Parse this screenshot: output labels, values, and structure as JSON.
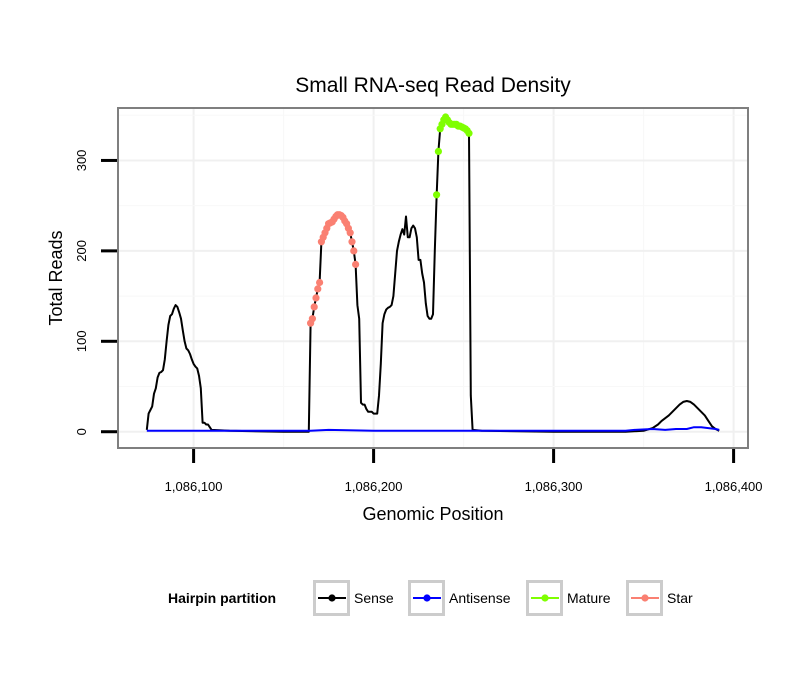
{
  "chart_data": {
    "type": "line",
    "title": "Small RNA-seq Read Density",
    "xlabel": "Genomic Position",
    "ylabel": "Total Reads",
    "xlim": [
      1086058,
      1086408
    ],
    "ylim": [
      -18,
      358
    ],
    "x_ticks": [
      {
        "value": 1086100,
        "label": "1,086,100"
      },
      {
        "value": 1086200,
        "label": "1,086,200"
      },
      {
        "value": 1086300,
        "label": "1,086,300"
      },
      {
        "value": 1086400,
        "label": "1,086,400"
      }
    ],
    "y_ticks": [
      {
        "value": 0,
        "label": "0"
      },
      {
        "value": 100,
        "label": "100"
      },
      {
        "value": 200,
        "label": "200"
      },
      {
        "value": 300,
        "label": "300"
      }
    ],
    "grid": true,
    "legend": {
      "title": "Hairpin partition",
      "position": "bottom",
      "entries": [
        {
          "label": "Sense",
          "color": "#000000"
        },
        {
          "label": "Antisense",
          "color": "#0000ff"
        },
        {
          "label": "Mature",
          "color": "#7fff00"
        },
        {
          "label": "Star",
          "color": "#fa8072"
        }
      ]
    },
    "series": [
      {
        "name": "Sense",
        "color": "#000000",
        "style": "line",
        "points": [
          [
            1086074,
            2
          ],
          [
            1086075,
            20
          ],
          [
            1086076,
            24
          ],
          [
            1086077,
            28
          ],
          [
            1086078,
            42
          ],
          [
            1086079,
            48
          ],
          [
            1086080,
            60
          ],
          [
            1086081,
            65
          ],
          [
            1086082,
            66
          ],
          [
            1086083,
            68
          ],
          [
            1086084,
            80
          ],
          [
            1086085,
            100
          ],
          [
            1086086,
            118
          ],
          [
            1086087,
            128
          ],
          [
            1086088,
            130
          ],
          [
            1086089,
            136
          ],
          [
            1086090,
            140
          ],
          [
            1086091,
            138
          ],
          [
            1086092,
            132
          ],
          [
            1086093,
            125
          ],
          [
            1086094,
            112
          ],
          [
            1086095,
            100
          ],
          [
            1086096,
            92
          ],
          [
            1086097,
            90
          ],
          [
            1086098,
            86
          ],
          [
            1086099,
            80
          ],
          [
            1086100,
            75
          ],
          [
            1086101,
            72
          ],
          [
            1086102,
            70
          ],
          [
            1086103,
            62
          ],
          [
            1086104,
            48
          ],
          [
            1086105,
            10
          ],
          [
            1086106,
            10
          ],
          [
            1086107,
            8
          ],
          [
            1086108,
            8
          ],
          [
            1086109,
            5
          ],
          [
            1086110,
            2
          ],
          [
            1086120,
            1
          ],
          [
            1086150,
            0
          ],
          [
            1086164,
            0
          ],
          [
            1086165,
            120
          ],
          [
            1086166,
            125
          ],
          [
            1086167,
            138
          ],
          [
            1086168,
            148
          ],
          [
            1086169,
            158
          ],
          [
            1086170,
            165
          ],
          [
            1086171,
            210
          ],
          [
            1086172,
            215
          ],
          [
            1086173,
            220
          ],
          [
            1086174,
            225
          ],
          [
            1086175,
            230
          ],
          [
            1086176,
            231
          ],
          [
            1086177,
            232
          ],
          [
            1086178,
            235
          ],
          [
            1086179,
            238
          ],
          [
            1086180,
            240
          ],
          [
            1086181,
            240
          ],
          [
            1086182,
            239
          ],
          [
            1086183,
            237
          ],
          [
            1086184,
            233
          ],
          [
            1086185,
            230
          ],
          [
            1086186,
            225
          ],
          [
            1086187,
            220
          ],
          [
            1086188,
            210
          ],
          [
            1086189,
            200
          ],
          [
            1086190,
            185
          ],
          [
            1086191,
            140
          ],
          [
            1086192,
            125
          ],
          [
            1086193,
            32
          ],
          [
            1086194,
            30
          ],
          [
            1086195,
            30
          ],
          [
            1086196,
            25
          ],
          [
            1086197,
            22
          ],
          [
            1086198,
            22
          ],
          [
            1086199,
            22
          ],
          [
            1086200,
            20
          ],
          [
            1086201,
            20
          ],
          [
            1086202,
            20
          ],
          [
            1086203,
            40
          ],
          [
            1086204,
            75
          ],
          [
            1086205,
            120
          ],
          [
            1086206,
            130
          ],
          [
            1086207,
            135
          ],
          [
            1086208,
            137
          ],
          [
            1086209,
            138
          ],
          [
            1086210,
            140
          ],
          [
            1086211,
            150
          ],
          [
            1086212,
            175
          ],
          [
            1086213,
            200
          ],
          [
            1086214,
            210
          ],
          [
            1086215,
            218
          ],
          [
            1086216,
            224
          ],
          [
            1086217,
            218
          ],
          [
            1086218,
            238
          ],
          [
            1086219,
            215
          ],
          [
            1086220,
            215
          ],
          [
            1086221,
            225
          ],
          [
            1086222,
            228
          ],
          [
            1086223,
            225
          ],
          [
            1086224,
            215
          ],
          [
            1086225,
            190
          ],
          [
            1086226,
            190
          ],
          [
            1086227,
            175
          ],
          [
            1086228,
            165
          ],
          [
            1086229,
            142
          ],
          [
            1086230,
            128
          ],
          [
            1086231,
            125
          ],
          [
            1086232,
            125
          ],
          [
            1086233,
            130
          ],
          [
            1086234,
            200
          ],
          [
            1086235,
            260
          ],
          [
            1086236,
            310
          ],
          [
            1086237,
            335
          ],
          [
            1086238,
            340
          ],
          [
            1086239,
            345
          ],
          [
            1086240,
            348
          ],
          [
            1086241,
            345
          ],
          [
            1086242,
            342
          ],
          [
            1086243,
            340
          ],
          [
            1086244,
            340
          ],
          [
            1086245,
            340
          ],
          [
            1086246,
            340
          ],
          [
            1086247,
            338
          ],
          [
            1086248,
            338
          ],
          [
            1086249,
            337
          ],
          [
            1086250,
            336
          ],
          [
            1086251,
            335
          ],
          [
            1086252,
            333
          ],
          [
            1086253,
            330
          ],
          [
            1086254,
            40
          ],
          [
            1086255,
            2
          ],
          [
            1086260,
            1
          ],
          [
            1086300,
            0
          ],
          [
            1086340,
            0
          ],
          [
            1086350,
            1
          ],
          [
            1086355,
            4
          ],
          [
            1086358,
            8
          ],
          [
            1086360,
            12
          ],
          [
            1086362,
            15
          ],
          [
            1086364,
            18
          ],
          [
            1086366,
            22
          ],
          [
            1086368,
            26
          ],
          [
            1086370,
            30
          ],
          [
            1086372,
            33
          ],
          [
            1086374,
            34
          ],
          [
            1086376,
            33
          ],
          [
            1086378,
            30
          ],
          [
            1086380,
            26
          ],
          [
            1086382,
            22
          ],
          [
            1086384,
            18
          ],
          [
            1086386,
            12
          ],
          [
            1086388,
            6
          ],
          [
            1086390,
            3
          ],
          [
            1086392,
            1
          ]
        ]
      },
      {
        "name": "Antisense",
        "color": "#0000ff",
        "style": "line",
        "points": [
          [
            1086074,
            1
          ],
          [
            1086150,
            1
          ],
          [
            1086165,
            1
          ],
          [
            1086175,
            2
          ],
          [
            1086200,
            1
          ],
          [
            1086280,
            1
          ],
          [
            1086340,
            1
          ],
          [
            1086345,
            2
          ],
          [
            1086355,
            3
          ],
          [
            1086362,
            2
          ],
          [
            1086368,
            3
          ],
          [
            1086374,
            3
          ],
          [
            1086378,
            5
          ],
          [
            1086382,
            5
          ],
          [
            1086386,
            4
          ],
          [
            1086390,
            3
          ],
          [
            1086392,
            2
          ]
        ]
      },
      {
        "name": "Mature",
        "color": "#7fff00",
        "style": "points",
        "points": [
          [
            1086235,
            262
          ],
          [
            1086236,
            310
          ],
          [
            1086237,
            335
          ],
          [
            1086238,
            340
          ],
          [
            1086239,
            345
          ],
          [
            1086240,
            348
          ],
          [
            1086241,
            345
          ],
          [
            1086242,
            342
          ],
          [
            1086243,
            340
          ],
          [
            1086244,
            340
          ],
          [
            1086245,
            340
          ],
          [
            1086246,
            340
          ],
          [
            1086247,
            338
          ],
          [
            1086248,
            338
          ],
          [
            1086249,
            337
          ],
          [
            1086250,
            336
          ],
          [
            1086251,
            335
          ],
          [
            1086252,
            333
          ],
          [
            1086253,
            330
          ]
        ]
      },
      {
        "name": "Star",
        "color": "#fa8072",
        "style": "points",
        "points": [
          [
            1086165,
            120
          ],
          [
            1086166,
            125
          ],
          [
            1086167,
            138
          ],
          [
            1086168,
            148
          ],
          [
            1086169,
            158
          ],
          [
            1086170,
            165
          ],
          [
            1086171,
            210
          ],
          [
            1086172,
            215
          ],
          [
            1086173,
            220
          ],
          [
            1086174,
            225
          ],
          [
            1086175,
            230
          ],
          [
            1086176,
            231
          ],
          [
            1086177,
            232
          ],
          [
            1086178,
            235
          ],
          [
            1086179,
            238
          ],
          [
            1086180,
            240
          ],
          [
            1086181,
            240
          ],
          [
            1086182,
            239
          ],
          [
            1086183,
            237
          ],
          [
            1086184,
            233
          ],
          [
            1086185,
            230
          ],
          [
            1086186,
            225
          ],
          [
            1086187,
            220
          ],
          [
            1086188,
            210
          ],
          [
            1086189,
            200
          ],
          [
            1086190,
            185
          ]
        ]
      }
    ]
  }
}
